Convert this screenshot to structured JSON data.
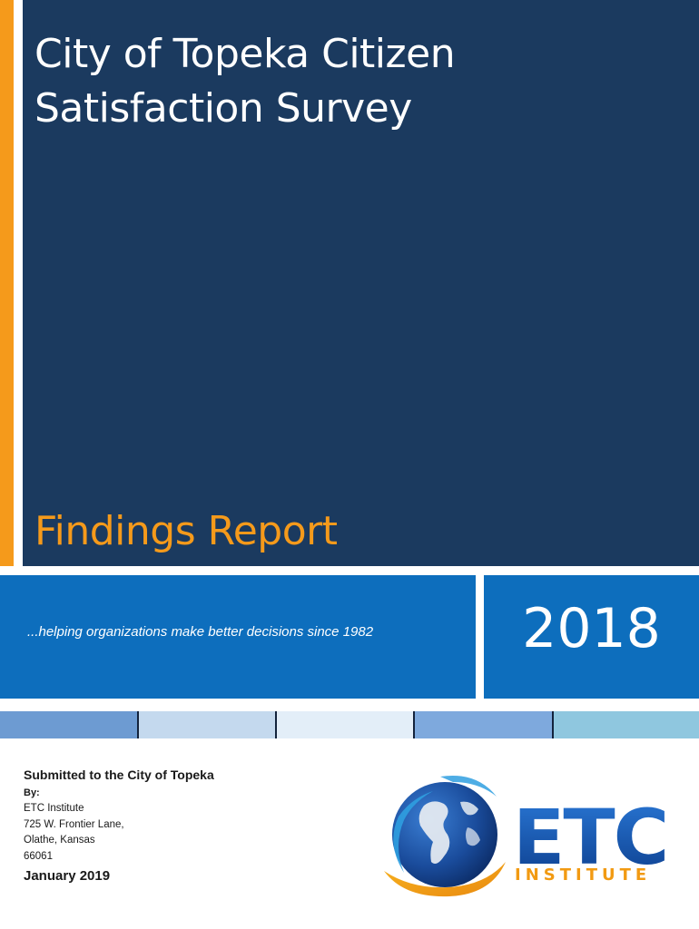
{
  "cover": {
    "title": "City of Topeka Citizen Satisfaction Survey",
    "subtitle": "Findings Report",
    "tagline": "...helping organizations make better decisions since 1982",
    "year": "2018"
  },
  "colors": {
    "navy": "#1b3a5f",
    "orange": "#f59a1b",
    "blue": "#0d6ebd",
    "stripes": [
      "#6d9bd2",
      "#c4d9ee",
      "#e3eef8",
      "#7ea9dd",
      "#8fc7df"
    ]
  },
  "submission": {
    "submitted_to": "Submitted to the City of Topeka",
    "by_label": "By:",
    "org": "ETC Institute",
    "street": "725 W. Frontier Lane,",
    "city": "Olathe, Kansas",
    "zip": "66061",
    "date": "January 2019"
  },
  "logo": {
    "icon": "globe-icon",
    "wordmark": "ETC",
    "subtext": "INSTITUTE"
  }
}
